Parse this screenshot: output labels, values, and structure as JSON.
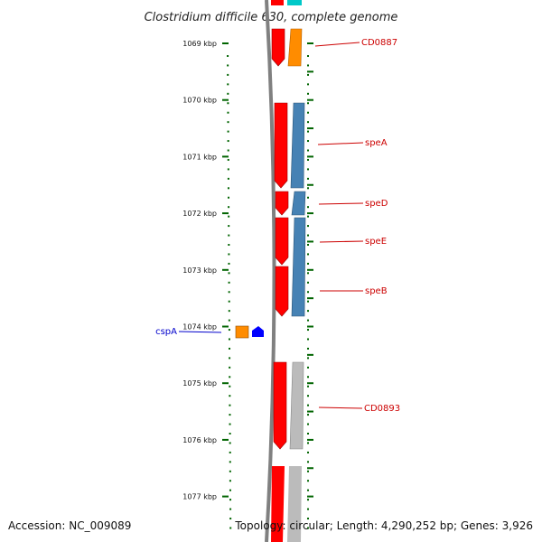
{
  "title": "Clostridium difficile 630, complete genome",
  "footer": {
    "accession": "Accession: NC_009089",
    "topology": "Topology: circular; Length: 4,290,252 bp; Genes: 3,926"
  },
  "axis": {
    "ticks": [
      {
        "kbp": 1069,
        "label": "1069 kbp"
      },
      {
        "kbp": 1070,
        "label": "1070 kbp"
      },
      {
        "kbp": 1071,
        "label": "1071 kbp"
      },
      {
        "kbp": 1072,
        "label": "1072 kbp"
      },
      {
        "kbp": 1073,
        "label": "1073 kbp"
      },
      {
        "kbp": 1074,
        "label": "1074 kbp"
      },
      {
        "kbp": 1075,
        "label": "1075 kbp"
      },
      {
        "kbp": 1076,
        "label": "1076 kbp"
      },
      {
        "kbp": 1077,
        "label": "1077 kbp"
      }
    ]
  },
  "genes": [
    {
      "name": "CD0887",
      "color": "#cc0000"
    },
    {
      "name": "speA",
      "color": "#cc0000"
    },
    {
      "name": "speD",
      "color": "#cc0000"
    },
    {
      "name": "speE",
      "color": "#cc0000"
    },
    {
      "name": "speB",
      "color": "#cc0000"
    },
    {
      "name": "CD0893",
      "color": "#cc0000"
    },
    {
      "name": "cspA",
      "color": "#0000cc"
    }
  ],
  "colors": {
    "cds": "#ff0000",
    "orange": "#ff8c00",
    "steelblue": "#4682b4",
    "gray": "#bbbbbb",
    "cyan": "#00c8c8",
    "blue": "#0000ff",
    "tick": "#006400",
    "backbone": "#808080"
  }
}
